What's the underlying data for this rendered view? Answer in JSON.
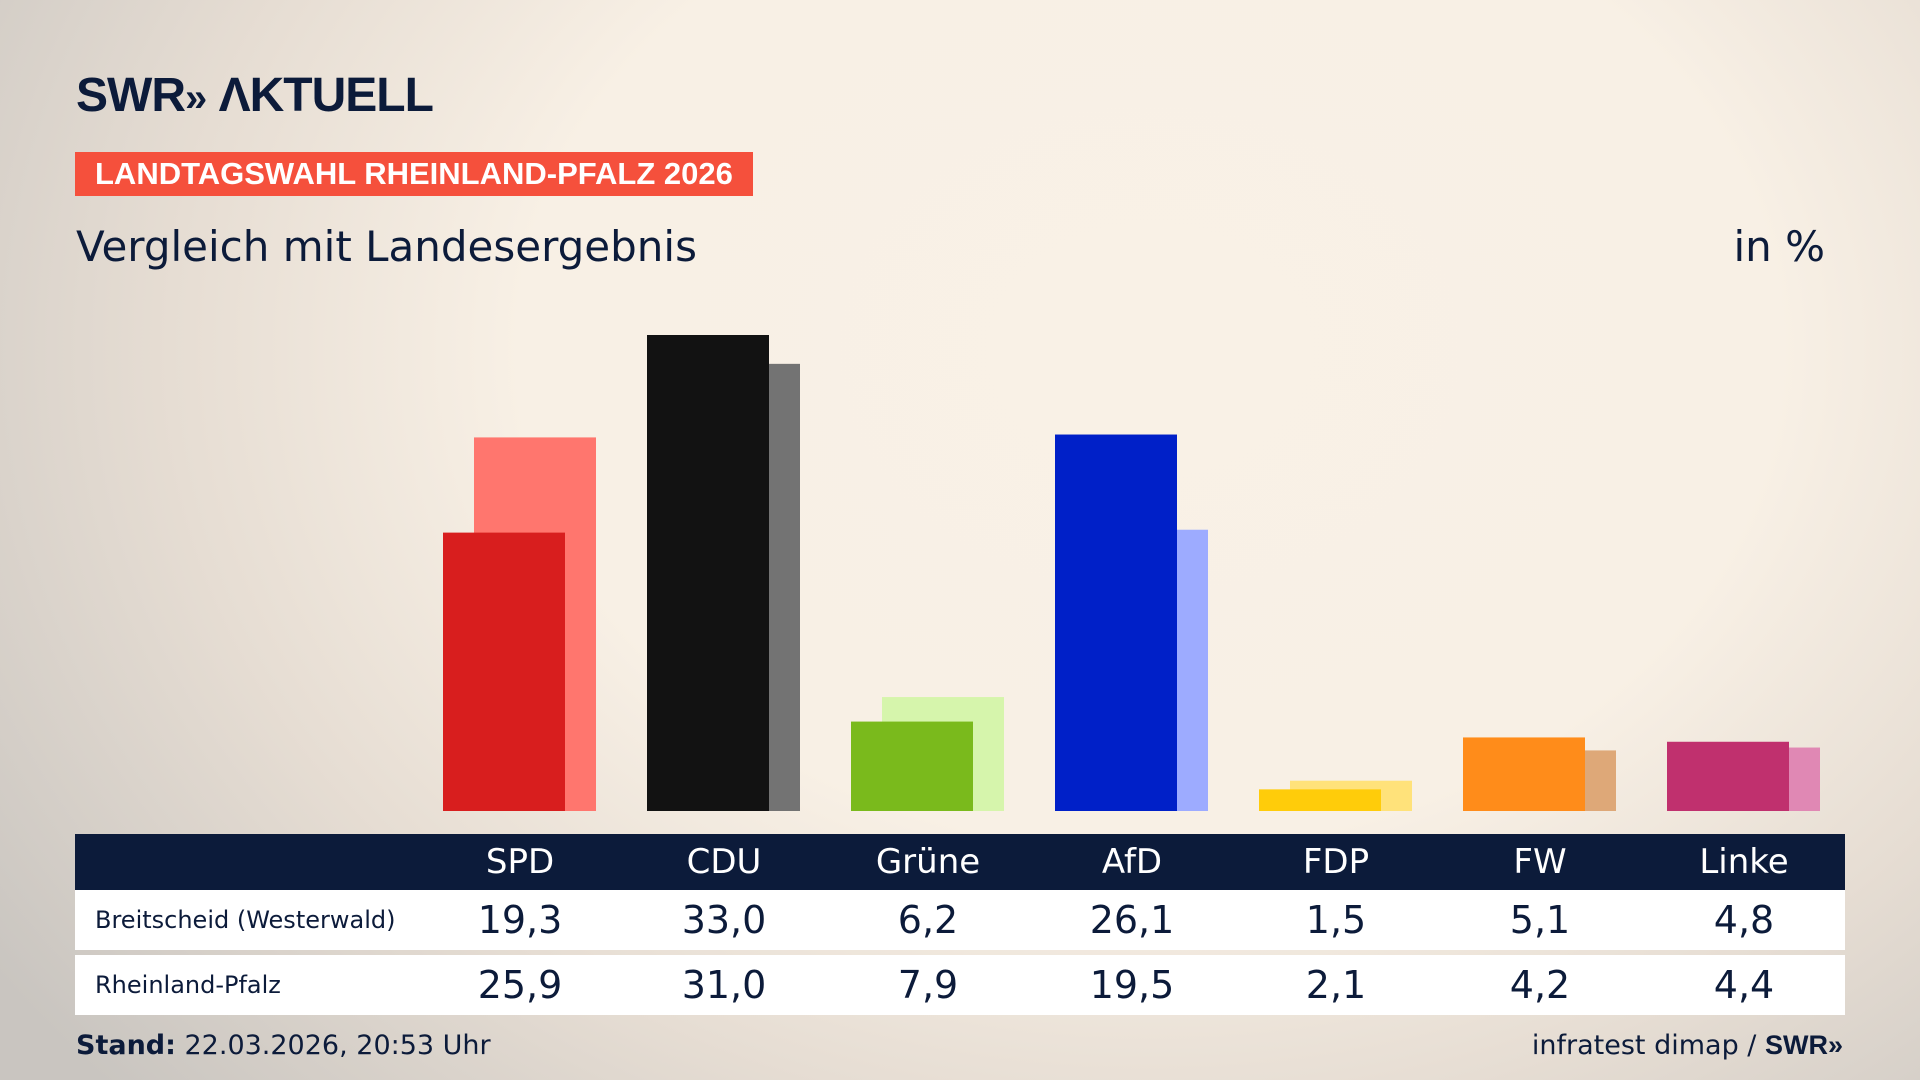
{
  "header": {
    "logo": "SWR» AKTUELL",
    "banner": "LANDTAGSWAHL RHEINLAND-PFALZ 2026",
    "subtitle": "Vergleich mit Landesergebnis",
    "unit": "in %"
  },
  "footer": {
    "stand_label": "Stand:",
    "stand_value": " 22.03.2026, 20:53 Uhr",
    "source": "infratest dimap / ",
    "source_logo": "SWR»"
  },
  "chart_data": {
    "type": "bar",
    "ylim": [
      0,
      33
    ],
    "grid": false,
    "categories": [
      "SPD",
      "CDU",
      "Grüne",
      "AfD",
      "FDP",
      "FW",
      "Linke"
    ],
    "colors": [
      "#d81e1e",
      "#121212",
      "#7aba1c",
      "#0020c8",
      "#ffcc0a",
      "#ff8c1a",
      "#c0306e"
    ],
    "light_colors": [
      "#ff766e",
      "#737373",
      "#d6f5ac",
      "#9dabff",
      "#ffe27a",
      "#dea878",
      "#e088b4"
    ],
    "series": [
      {
        "name": "Breitscheid (Westerwald)",
        "values": [
          19.3,
          33.0,
          6.2,
          26.1,
          1.5,
          5.1,
          4.8
        ],
        "labels": [
          "19,3",
          "33,0",
          "6,2",
          "26,1",
          "1,5",
          "5,1",
          "4,8"
        ]
      },
      {
        "name": "Rheinland-Pfalz",
        "values": [
          25.9,
          31.0,
          7.9,
          19.5,
          2.1,
          4.2,
          4.4
        ],
        "labels": [
          "25,9",
          "31,0",
          "7,9",
          "19,5",
          "2,1",
          "4,2",
          "4,4"
        ]
      }
    ]
  }
}
